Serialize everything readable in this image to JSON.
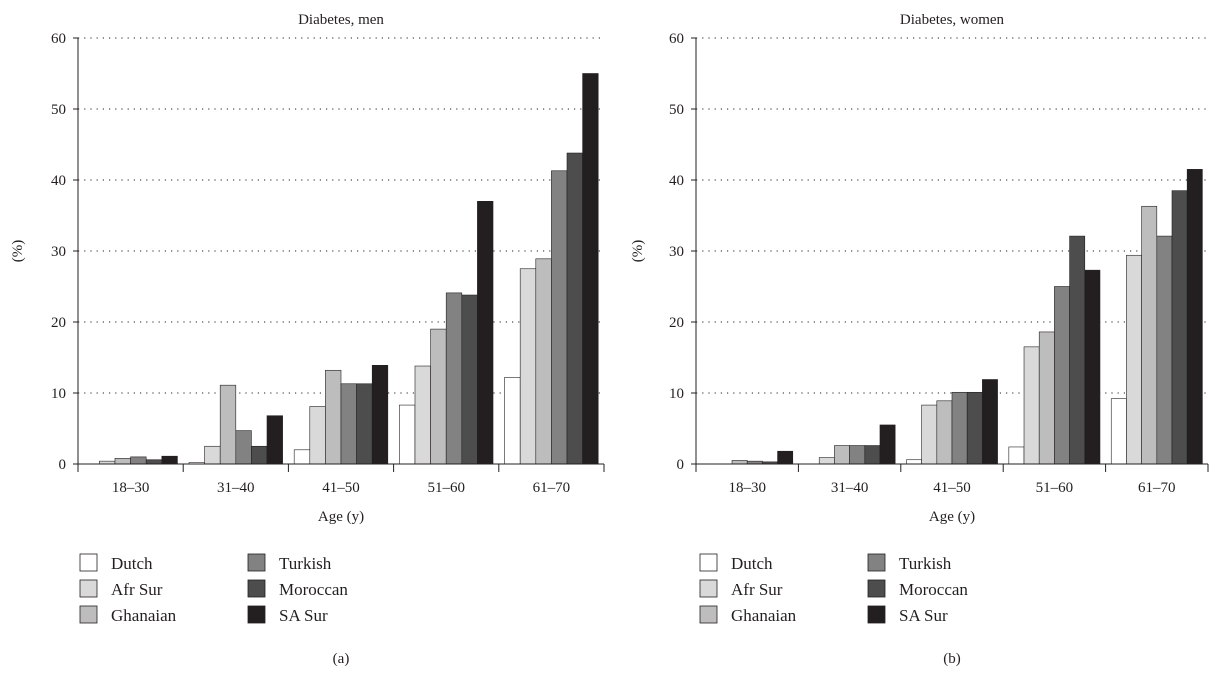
{
  "chart_data": [
    {
      "type": "bar",
      "panel_label": "(a)",
      "title": "Diabetes, men",
      "xlabel": "Age (y)",
      "ylabel": "(%)",
      "ylim": [
        0,
        60
      ],
      "yticks": [
        "0",
        "10",
        "20",
        "30",
        "40",
        "50",
        "60"
      ],
      "grid": true,
      "legend_position": "bottom-left",
      "categories": [
        "18–30",
        "31–40",
        "41–50",
        "51–60",
        "61–70"
      ],
      "series": [
        {
          "name": "Dutch",
          "color": "#ffffff",
          "values": [
            0,
            0.2,
            2.0,
            8.3,
            12.2
          ]
        },
        {
          "name": "Afr Sur",
          "color": "#d9d9d9",
          "values": [
            0.4,
            2.5,
            8.1,
            13.8,
            27.5
          ]
        },
        {
          "name": "Ghanaian",
          "color": "#bdbdbd",
          "values": [
            0.8,
            11.1,
            13.2,
            19.0,
            28.9
          ]
        },
        {
          "name": "Turkish",
          "color": "#828282",
          "values": [
            1.0,
            4.7,
            11.3,
            24.1,
            41.3
          ]
        },
        {
          "name": "Moroccan",
          "color": "#4d4d4d",
          "values": [
            0.6,
            2.5,
            11.3,
            23.8,
            43.8
          ]
        },
        {
          "name": "SA Sur",
          "color": "#231f20",
          "values": [
            1.1,
            6.8,
            13.9,
            37.0,
            55.0
          ]
        }
      ]
    },
    {
      "type": "bar",
      "panel_label": "(b)",
      "title": "Diabetes, women",
      "xlabel": "Age (y)",
      "ylabel": "(%)",
      "ylim": [
        0,
        60
      ],
      "yticks": [
        "0",
        "10",
        "20",
        "30",
        "40",
        "50",
        "60"
      ],
      "grid": true,
      "legend_position": "bottom-left",
      "categories": [
        "18–30",
        "31–40",
        "41–50",
        "51–60",
        "61–70"
      ],
      "series": [
        {
          "name": "Dutch",
          "color": "#ffffff",
          "values": [
            0,
            0,
            0.6,
            2.4,
            9.2
          ]
        },
        {
          "name": "Afr Sur",
          "color": "#d9d9d9",
          "values": [
            0,
            0.9,
            8.3,
            16.5,
            29.4
          ]
        },
        {
          "name": "Ghanaian",
          "color": "#bdbdbd",
          "values": [
            0.5,
            2.6,
            8.9,
            18.6,
            36.3
          ]
        },
        {
          "name": "Turkish",
          "color": "#828282",
          "values": [
            0.4,
            2.6,
            10.1,
            25.0,
            32.1
          ]
        },
        {
          "name": "Moroccan",
          "color": "#4d4d4d",
          "values": [
            0.3,
            2.6,
            10.1,
            32.1,
            38.5
          ]
        },
        {
          "name": "SA Sur",
          "color": "#231f20",
          "values": [
            1.8,
            5.5,
            11.9,
            27.3,
            41.5
          ]
        }
      ]
    }
  ]
}
